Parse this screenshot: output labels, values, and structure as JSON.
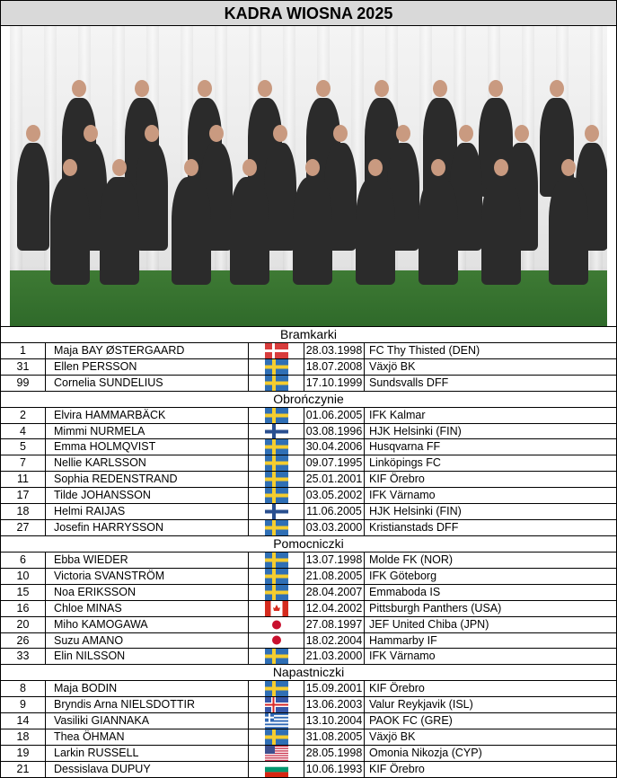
{
  "title": "KADRA WIOSNA 2025",
  "sections": [
    {
      "name": "Bramkarki",
      "players": [
        {
          "number": "1",
          "name": "Maja BAY ØSTERGAARD",
          "flag": "DEN",
          "dob": "28.03.1998",
          "club": "FC Thy Thisted (DEN)"
        },
        {
          "number": "31",
          "name": "Ellen PERSSON",
          "flag": "SWE",
          "dob": "18.07.2008",
          "club": "Växjö BK"
        },
        {
          "number": "99",
          "name": "Cornelia SUNDELIUS",
          "flag": "SWE",
          "dob": "17.10.1999",
          "club": "Sundsvalls DFF"
        }
      ]
    },
    {
      "name": "Obrończynie",
      "players": [
        {
          "number": "2",
          "name": "Elvira HAMMARBÄCK",
          "flag": "SWE",
          "dob": "01.06.2005",
          "club": "IFK Kalmar"
        },
        {
          "number": "4",
          "name": "Mimmi NURMELA",
          "flag": "FIN",
          "dob": "03.08.1996",
          "club": "HJK Helsinki (FIN)"
        },
        {
          "number": "5",
          "name": "Emma HOLMQVIST",
          "flag": "SWE",
          "dob": "30.04.2006",
          "club": "Husqvarna FF"
        },
        {
          "number": "7",
          "name": "Nellie KARLSSON",
          "flag": "SWE",
          "dob": "09.07.1995",
          "club": "Linköpings FC"
        },
        {
          "number": "11",
          "name": "Sophia REDENSTRAND",
          "flag": "SWE",
          "dob": "25.01.2001",
          "club": "KIF Örebro"
        },
        {
          "number": "17",
          "name": "Tilde JOHANSSON",
          "flag": "SWE",
          "dob": "03.05.2002",
          "club": "IFK Värnamo"
        },
        {
          "number": "18",
          "name": "Helmi RAIJAS",
          "flag": "FIN",
          "dob": "11.06.2005",
          "club": "HJK Helsinki (FIN)"
        },
        {
          "number": "27",
          "name": "Josefin HARRYSSON",
          "flag": "SWE",
          "dob": "03.03.2000",
          "club": "Kristianstads DFF"
        }
      ]
    },
    {
      "name": "Pomocniczki",
      "players": [
        {
          "number": "6",
          "name": "Ebba WIEDER",
          "flag": "SWE",
          "dob": "13.07.1998",
          "club": "Molde FK (NOR)"
        },
        {
          "number": "10",
          "name": "Victoria SVANSTRÖM",
          "flag": "SWE",
          "dob": "21.08.2005",
          "club": "IFK Göteborg"
        },
        {
          "number": "15",
          "name": "Noa ERIKSSON",
          "flag": "SWE",
          "dob": "28.04.2007",
          "club": "Emmaboda IS"
        },
        {
          "number": "16",
          "name": "Chloe MINAS",
          "flag": "CAN",
          "dob": "12.04.2002",
          "club": "Pittsburgh Panthers (USA)"
        },
        {
          "number": "20",
          "name": "Miho KAMOGAWA",
          "flag": "JPN",
          "dob": "27.08.1997",
          "club": "JEF United Chiba (JPN)"
        },
        {
          "number": "26",
          "name": "Suzu AMANO",
          "flag": "JPN",
          "dob": "18.02.2004",
          "club": "Hammarby IF"
        },
        {
          "number": "33",
          "name": "Elin NILSSON",
          "flag": "SWE",
          "dob": "21.03.2000",
          "club": "IFK Värnamo"
        }
      ]
    },
    {
      "name": "Napastniczki",
      "players": [
        {
          "number": "8",
          "name": "Maja BODIN",
          "flag": "SWE",
          "dob": "15.09.2001",
          "club": "KIF Örebro"
        },
        {
          "number": "9",
          "name": "Bryndis Arna NIELSDOTTIR",
          "flag": "ISL",
          "dob": "13.06.2003",
          "club": "Valur Reykjavik (ISL)"
        },
        {
          "number": "14",
          "name": "Vasiliki GIANNAKA",
          "flag": "GRE",
          "dob": "13.10.2004",
          "club": "PAOK FC (GRE)"
        },
        {
          "number": "18",
          "name": "Thea ÖHMAN",
          "flag": "SWE",
          "dob": "31.08.2005",
          "club": "Växjö BK"
        },
        {
          "number": "19",
          "name": "Larkin RUSSELL",
          "flag": "USA",
          "dob": "28.05.1998",
          "club": "Omonia Nikozja (CYP)"
        },
        {
          "number": "21",
          "name": "Dessislava DUPUY",
          "flag": "BUL",
          "dob": "10.06.1993",
          "club": "KIF Örebro"
        }
      ]
    }
  ]
}
